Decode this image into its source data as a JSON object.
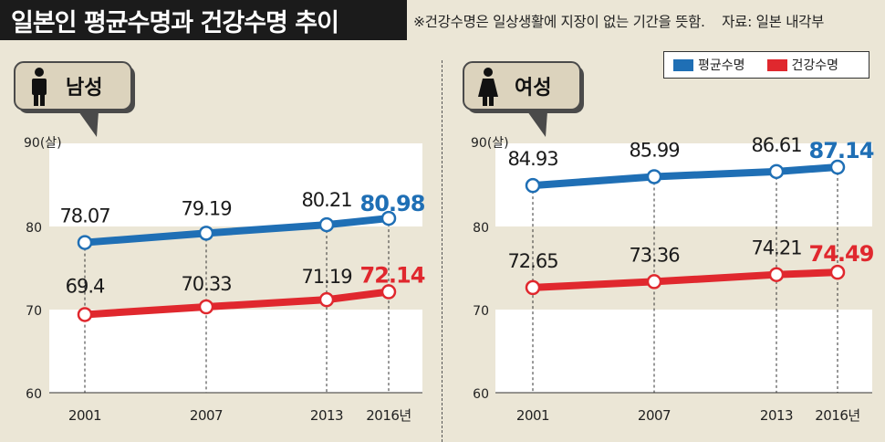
{
  "header": {
    "title": "일본인 평균수명과 건강수명 추이",
    "note": "※건강수명은 일상생활에 지장이 없는 기간을 뜻함.",
    "source": "자료: 일본 내각부"
  },
  "legend": {
    "items": [
      {
        "label": "평균수명",
        "color": "#1f6fb5"
      },
      {
        "label": "건강수명",
        "color": "#e0282e"
      }
    ]
  },
  "chart_data": [
    {
      "type": "line",
      "panel_label": "남성",
      "y_unit_label": "90(살)",
      "x": [
        "2001",
        "2007",
        "2013",
        "2016년"
      ],
      "y_ticks": [
        "60",
        "70",
        "80",
        "90(살)"
      ],
      "ylim": [
        60,
        90
      ],
      "series": [
        {
          "name": "평균수명",
          "color": "#1f6fb5",
          "values": [
            78.07,
            79.19,
            80.21,
            80.98
          ],
          "labels": [
            "78.07",
            "79.19",
            "80.21",
            "80.98"
          ]
        },
        {
          "name": "건강수명",
          "color": "#e0282e",
          "values": [
            69.4,
            70.33,
            71.19,
            72.14
          ],
          "labels": [
            "69.4",
            "70.33",
            "71.19",
            "72.14"
          ]
        }
      ]
    },
    {
      "type": "line",
      "panel_label": "여성",
      "y_unit_label": "90(살)",
      "x": [
        "2001",
        "2007",
        "2013",
        "2016년"
      ],
      "y_ticks": [
        "60",
        "70",
        "80",
        "90(살)"
      ],
      "ylim": [
        60,
        90
      ],
      "series": [
        {
          "name": "평균수명",
          "color": "#1f6fb5",
          "values": [
            84.93,
            85.99,
            86.61,
            87.14
          ],
          "labels": [
            "84.93",
            "85.99",
            "86.61",
            "87.14"
          ]
        },
        {
          "name": "건강수명",
          "color": "#e0282e",
          "values": [
            72.65,
            73.36,
            74.21,
            74.49
          ],
          "labels": [
            "72.65",
            "73.36",
            "74.21",
            "74.49"
          ]
        }
      ]
    }
  ]
}
